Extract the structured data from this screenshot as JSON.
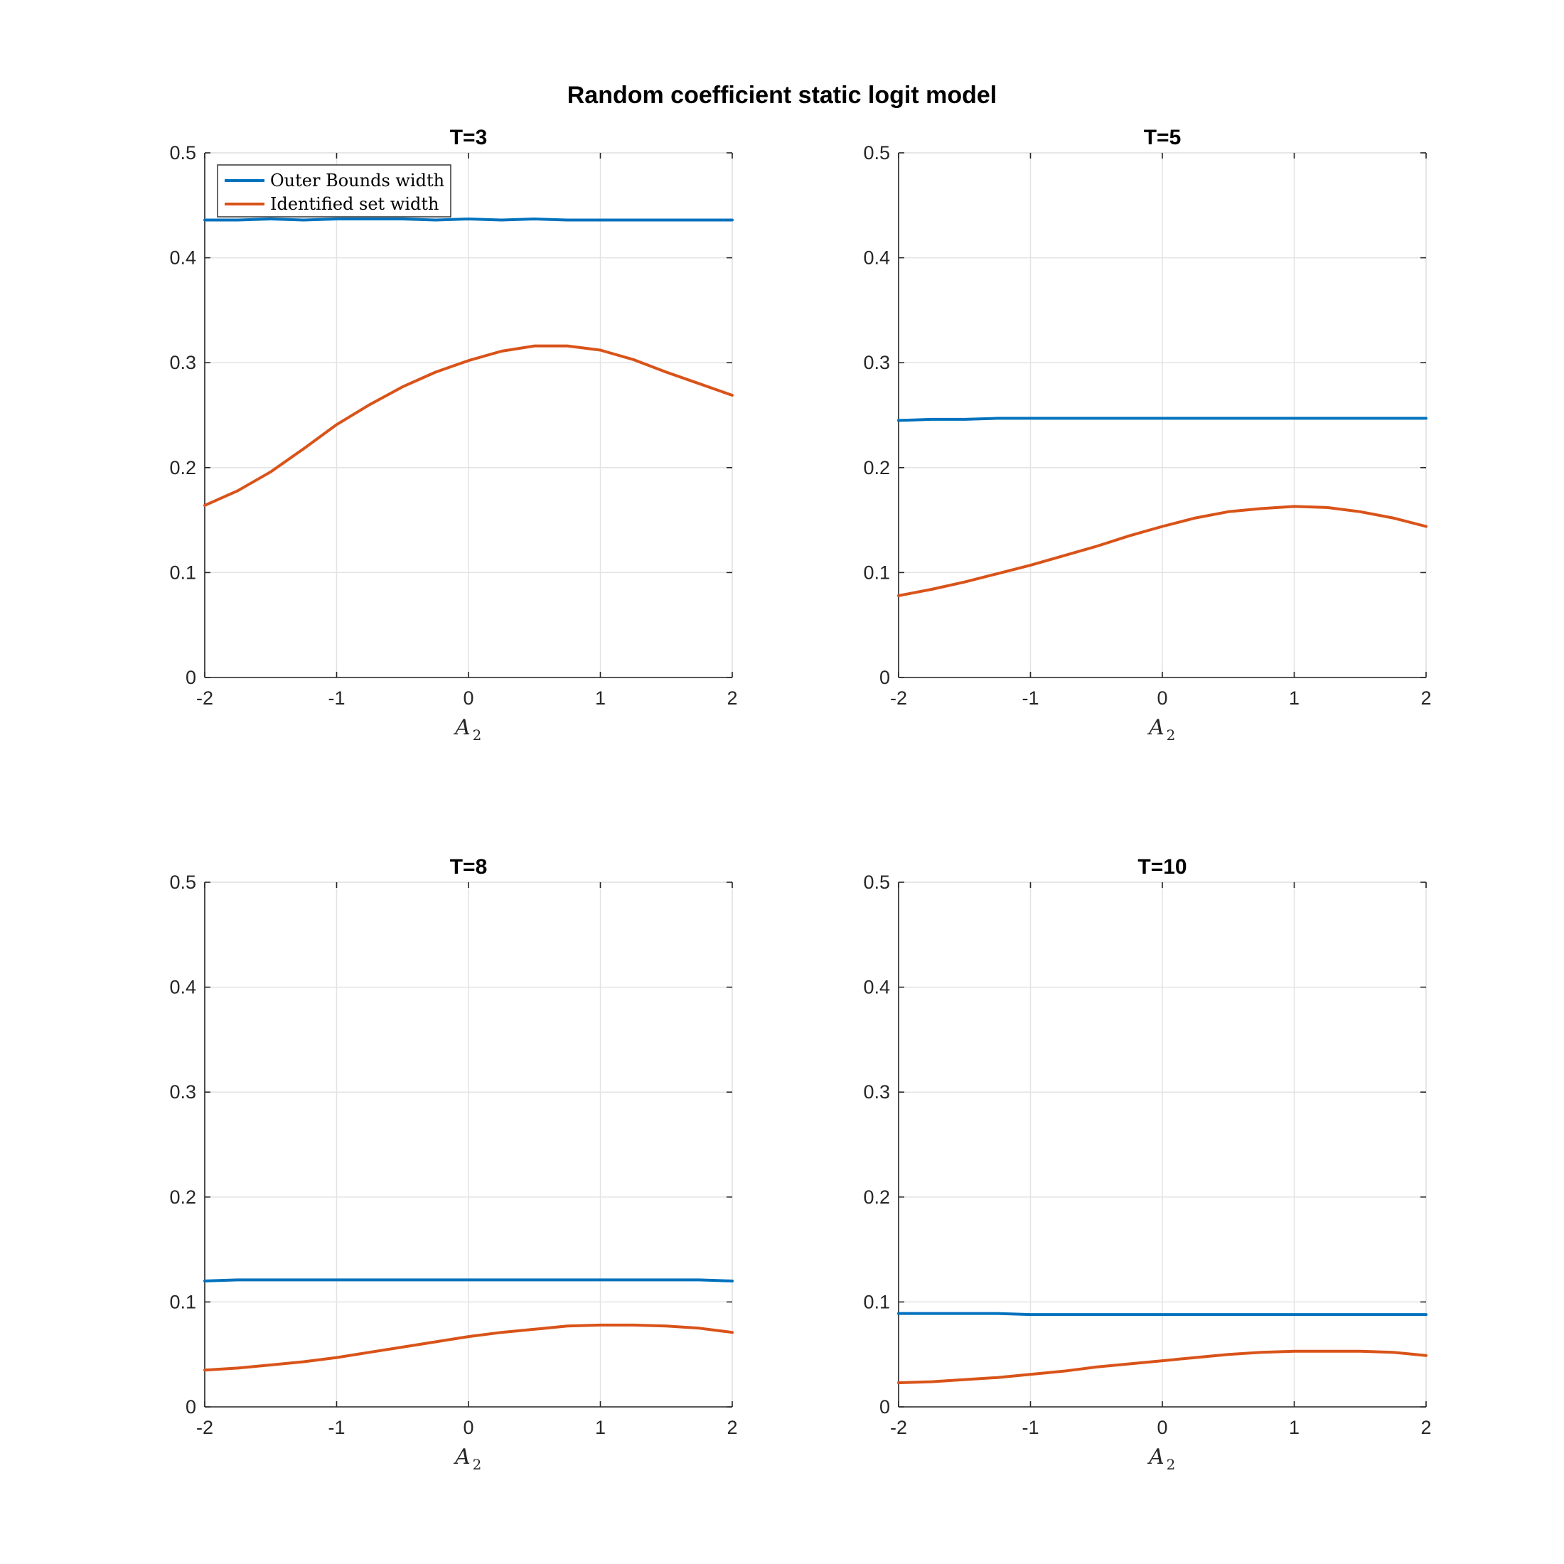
{
  "figure": {
    "title": "Random coefficient static logit model"
  },
  "chart_data": [
    {
      "type": "line",
      "title": "T=3",
      "xlabel": "A",
      "xlabel_sub": "2",
      "ylabel": "",
      "xlim": [
        -2,
        2
      ],
      "ylim": [
        0,
        0.5
      ],
      "xticks": [
        -2,
        -1,
        0,
        1,
        2
      ],
      "yticks": [
        0,
        0.1,
        0.2,
        0.3,
        0.4,
        0.5
      ],
      "xtick_labels": [
        "-2",
        "-1",
        "0",
        "1",
        "2"
      ],
      "ytick_labels": [
        "0",
        "0.1",
        "0.2",
        "0.3",
        "0.4",
        "0.5"
      ],
      "grid": true,
      "legend": "top-left",
      "x": [
        -2,
        -1.75,
        -1.5,
        -1.25,
        -1,
        -0.75,
        -0.5,
        -0.25,
        0,
        0.25,
        0.5,
        0.75,
        1,
        1.25,
        1.5,
        1.75,
        2
      ],
      "series": [
        {
          "name": "Outer Bounds width",
          "color": "#0072BD",
          "values": [
            0.436,
            0.436,
            0.437,
            0.436,
            0.437,
            0.437,
            0.437,
            0.436,
            0.437,
            0.436,
            0.437,
            0.436,
            0.436,
            0.436,
            0.436,
            0.436,
            0.436
          ]
        },
        {
          "name": "Identified set width",
          "color": "#D95319",
          "values": [
            0.164,
            0.178,
            0.196,
            0.218,
            0.241,
            0.26,
            0.277,
            0.291,
            0.302,
            0.311,
            0.316,
            0.316,
            0.312,
            0.303,
            0.291,
            0.28,
            0.269
          ]
        }
      ]
    },
    {
      "type": "line",
      "title": "T=5",
      "xlabel": "A",
      "xlabel_sub": "2",
      "ylabel": "",
      "xlim": [
        -2,
        2
      ],
      "ylim": [
        0,
        0.5
      ],
      "xticks": [
        -2,
        -1,
        0,
        1,
        2
      ],
      "yticks": [
        0,
        0.1,
        0.2,
        0.3,
        0.4,
        0.5
      ],
      "xtick_labels": [
        "-2",
        "-1",
        "0",
        "1",
        "2"
      ],
      "ytick_labels": [
        "0",
        "0.1",
        "0.2",
        "0.3",
        "0.4",
        "0.5"
      ],
      "grid": true,
      "legend": "",
      "x": [
        -2,
        -1.75,
        -1.5,
        -1.25,
        -1,
        -0.75,
        -0.5,
        -0.25,
        0,
        0.25,
        0.5,
        0.75,
        1,
        1.25,
        1.5,
        1.75,
        2
      ],
      "series": [
        {
          "name": "Outer Bounds width",
          "color": "#0072BD",
          "values": [
            0.245,
            0.246,
            0.246,
            0.247,
            0.247,
            0.247,
            0.247,
            0.247,
            0.247,
            0.247,
            0.247,
            0.247,
            0.247,
            0.247,
            0.247,
            0.247,
            0.247
          ]
        },
        {
          "name": "Identified set width",
          "color": "#D95319",
          "values": [
            0.078,
            0.084,
            0.091,
            0.099,
            0.107,
            0.116,
            0.125,
            0.135,
            0.144,
            0.152,
            0.158,
            0.161,
            0.163,
            0.162,
            0.158,
            0.152,
            0.144
          ]
        }
      ]
    },
    {
      "type": "line",
      "title": "T=8",
      "xlabel": "A",
      "xlabel_sub": "2",
      "ylabel": "",
      "xlim": [
        -2,
        2
      ],
      "ylim": [
        0,
        0.5
      ],
      "xticks": [
        -2,
        -1,
        0,
        1,
        2
      ],
      "yticks": [
        0,
        0.1,
        0.2,
        0.3,
        0.4,
        0.5
      ],
      "xtick_labels": [
        "-2",
        "-1",
        "0",
        "1",
        "2"
      ],
      "ytick_labels": [
        "0",
        "0.1",
        "0.2",
        "0.3",
        "0.4",
        "0.5"
      ],
      "grid": true,
      "legend": "",
      "x": [
        -2,
        -1.75,
        -1.5,
        -1.25,
        -1,
        -0.75,
        -0.5,
        -0.25,
        0,
        0.25,
        0.5,
        0.75,
        1,
        1.25,
        1.5,
        1.75,
        2
      ],
      "series": [
        {
          "name": "Outer Bounds width",
          "color": "#0072BD",
          "values": [
            0.12,
            0.121,
            0.121,
            0.121,
            0.121,
            0.121,
            0.121,
            0.121,
            0.121,
            0.121,
            0.121,
            0.121,
            0.121,
            0.121,
            0.121,
            0.121,
            0.12
          ]
        },
        {
          "name": "Identified set width",
          "color": "#D95319",
          "values": [
            0.035,
            0.037,
            0.04,
            0.043,
            0.047,
            0.052,
            0.057,
            0.062,
            0.067,
            0.071,
            0.074,
            0.077,
            0.078,
            0.078,
            0.077,
            0.075,
            0.071
          ]
        }
      ]
    },
    {
      "type": "line",
      "title": "T=10",
      "xlabel": "A",
      "xlabel_sub": "2",
      "ylabel": "",
      "xlim": [
        -2,
        2
      ],
      "ylim": [
        0,
        0.5
      ],
      "xticks": [
        -2,
        -1,
        0,
        1,
        2
      ],
      "yticks": [
        0,
        0.1,
        0.2,
        0.3,
        0.4,
        0.5
      ],
      "xtick_labels": [
        "-2",
        "-1",
        "0",
        "1",
        "2"
      ],
      "ytick_labels": [
        "0",
        "0.1",
        "0.2",
        "0.3",
        "0.4",
        "0.5"
      ],
      "grid": true,
      "legend": "",
      "x": [
        -2,
        -1.75,
        -1.5,
        -1.25,
        -1,
        -0.75,
        -0.5,
        -0.25,
        0,
        0.25,
        0.5,
        0.75,
        1,
        1.25,
        1.5,
        1.75,
        2
      ],
      "series": [
        {
          "name": "Outer Bounds width",
          "color": "#0072BD",
          "values": [
            0.089,
            0.089,
            0.089,
            0.089,
            0.088,
            0.088,
            0.088,
            0.088,
            0.088,
            0.088,
            0.088,
            0.088,
            0.088,
            0.088,
            0.088,
            0.088,
            0.088
          ]
        },
        {
          "name": "Identified set width",
          "color": "#D95319",
          "values": [
            0.023,
            0.024,
            0.026,
            0.028,
            0.031,
            0.034,
            0.038,
            0.041,
            0.044,
            0.047,
            0.05,
            0.052,
            0.053,
            0.053,
            0.053,
            0.052,
            0.049
          ]
        }
      ]
    }
  ]
}
